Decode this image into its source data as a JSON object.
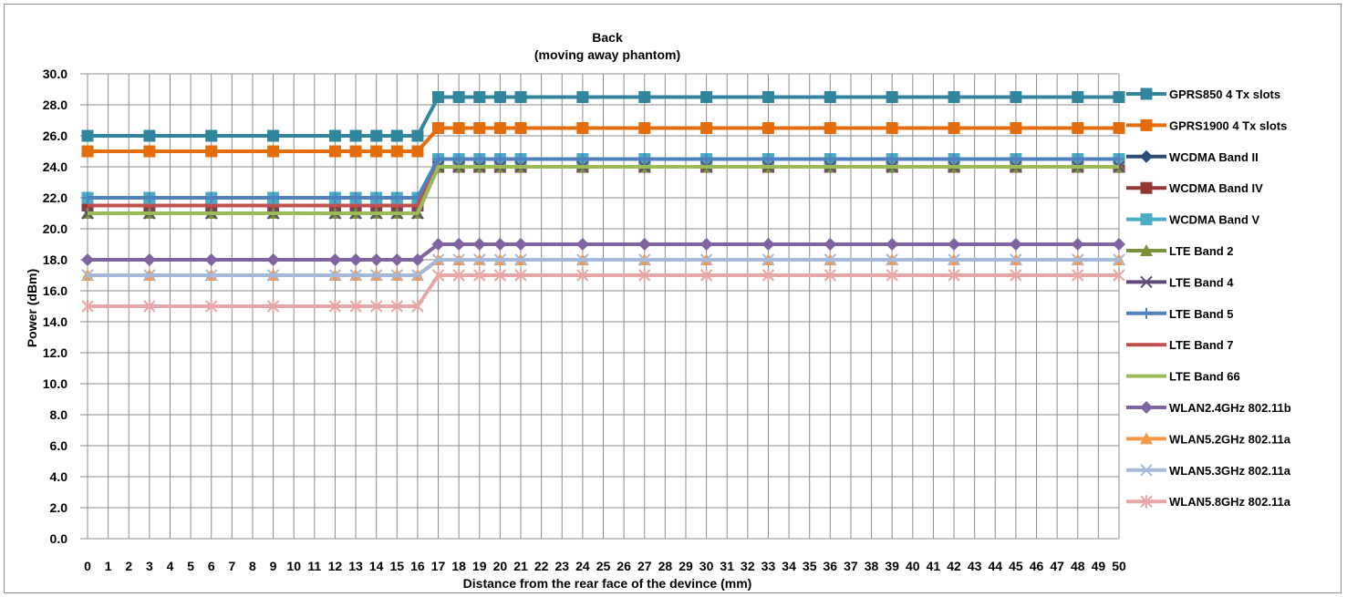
{
  "chart_data": {
    "type": "line",
    "title": "Back",
    "subtitle": "(moving away phantom)",
    "xlabel": "Distance from the rear face of the devince (mm)",
    "ylabel": "Power (dBm)",
    "ylim": [
      0,
      30
    ],
    "y_ticks": [
      "0.0",
      "2.0",
      "4.0",
      "6.0",
      "8.0",
      "10.0",
      "12.0",
      "14.0",
      "16.0",
      "18.0",
      "20.0",
      "22.0",
      "24.0",
      "26.0",
      "28.0",
      "30.0"
    ],
    "x_ticks": [
      "0",
      "1",
      "2",
      "3",
      "4",
      "5",
      "6",
      "7",
      "8",
      "9",
      "10",
      "11",
      "12",
      "13",
      "14",
      "15",
      "16",
      "17",
      "18",
      "19",
      "20",
      "21",
      "22",
      "23",
      "24",
      "25",
      "26",
      "27",
      "28",
      "29",
      "30",
      "31",
      "32",
      "33",
      "34",
      "35",
      "36",
      "37",
      "38",
      "39",
      "40",
      "41",
      "42",
      "43",
      "44",
      "45",
      "46",
      "47",
      "48",
      "49",
      "50"
    ],
    "x": [
      0,
      3,
      6,
      9,
      12,
      13,
      14,
      15,
      16,
      17,
      18,
      19,
      20,
      21,
      24,
      27,
      30,
      33,
      36,
      39,
      42,
      45,
      48,
      50
    ],
    "grid": true,
    "legend_position": "right",
    "series": [
      {
        "name": "GPRS850 4 Tx slots",
        "color": "#31859c",
        "marker": "square",
        "values": [
          26,
          26,
          26,
          26,
          26,
          26,
          26,
          26,
          26,
          28.5,
          28.5,
          28.5,
          28.5,
          28.5,
          28.5,
          28.5,
          28.5,
          28.5,
          28.5,
          28.5,
          28.5,
          28.5,
          28.5,
          28.5
        ]
      },
      {
        "name": "GPRS1900 4 Tx slots",
        "color": "#e46c0a",
        "marker": "square",
        "values": [
          25,
          25,
          25,
          25,
          25,
          25,
          25,
          25,
          25,
          26.5,
          26.5,
          26.5,
          26.5,
          26.5,
          26.5,
          26.5,
          26.5,
          26.5,
          26.5,
          26.5,
          26.5,
          26.5,
          26.5,
          26.5
        ]
      },
      {
        "name": "WCDMA Band II",
        "color": "#2c4d75",
        "marker": "diamond",
        "values": [
          22,
          22,
          22,
          22,
          22,
          22,
          22,
          22,
          22,
          24.5,
          24.5,
          24.5,
          24.5,
          24.5,
          24.5,
          24.5,
          24.5,
          24.5,
          24.5,
          24.5,
          24.5,
          24.5,
          24.5,
          24.5
        ]
      },
      {
        "name": "WCDMA Band IV",
        "color": "#953735",
        "marker": "square",
        "values": [
          21.5,
          21.5,
          21.5,
          21.5,
          21.5,
          21.5,
          21.5,
          21.5,
          21.5,
          24,
          24,
          24,
          24,
          24,
          24,
          24,
          24,
          24,
          24,
          24,
          24,
          24,
          24,
          24
        ]
      },
      {
        "name": "WCDMA Band V",
        "color": "#4bacc6",
        "marker": "square",
        "values": [
          22,
          22,
          22,
          22,
          22,
          22,
          22,
          22,
          22,
          24.5,
          24.5,
          24.5,
          24.5,
          24.5,
          24.5,
          24.5,
          24.5,
          24.5,
          24.5,
          24.5,
          24.5,
          24.5,
          24.5,
          24.5
        ]
      },
      {
        "name": "LTE Band 2",
        "color": "#77933c",
        "marker": "triangle",
        "values": [
          21,
          21,
          21,
          21,
          21,
          21,
          21,
          21,
          21,
          24,
          24,
          24,
          24,
          24,
          24,
          24,
          24,
          24,
          24,
          24,
          24,
          24,
          24,
          24
        ]
      },
      {
        "name": "LTE Band 4",
        "color": "#5f497a",
        "marker": "x",
        "values": [
          21,
          21,
          21,
          21,
          21,
          21,
          21,
          21,
          21,
          24,
          24,
          24,
          24,
          24,
          24,
          24,
          24,
          24,
          24,
          24,
          24,
          24,
          24,
          24
        ]
      },
      {
        "name": "LTE Band 5",
        "color": "#4f81bd",
        "marker": "plus",
        "values": [
          22,
          22,
          22,
          22,
          22,
          22,
          22,
          22,
          22,
          24.5,
          24.5,
          24.5,
          24.5,
          24.5,
          24.5,
          24.5,
          24.5,
          24.5,
          24.5,
          24.5,
          24.5,
          24.5,
          24.5,
          24.5
        ]
      },
      {
        "name": "LTE Band 7",
        "color": "#c0504d",
        "marker": "none",
        "values": [
          21.5,
          21.5,
          21.5,
          21.5,
          21.5,
          21.5,
          21.5,
          21.5,
          21.5,
          24,
          24,
          24,
          24,
          24,
          24,
          24,
          24,
          24,
          24,
          24,
          24,
          24,
          24,
          24
        ]
      },
      {
        "name": "LTE Band 66",
        "color": "#9bbb59",
        "marker": "none",
        "values": [
          21,
          21,
          21,
          21,
          21,
          21,
          21,
          21,
          21,
          24,
          24,
          24,
          24,
          24,
          24,
          24,
          24,
          24,
          24,
          24,
          24,
          24,
          24,
          24
        ]
      },
      {
        "name": "WLAN2.4GHz 802.11b",
        "color": "#8064a2",
        "marker": "diamond",
        "values": [
          18,
          18,
          18,
          18,
          18,
          18,
          18,
          18,
          18,
          19,
          19,
          19,
          19,
          19,
          19,
          19,
          19,
          19,
          19,
          19,
          19,
          19,
          19,
          19
        ]
      },
      {
        "name": "WLAN5.2GHz 802.11a",
        "color": "#f79646",
        "marker": "triangle",
        "values": [
          17,
          17,
          17,
          17,
          17,
          17,
          17,
          17,
          17,
          18,
          18,
          18,
          18,
          18,
          18,
          18,
          18,
          18,
          18,
          18,
          18,
          18,
          18,
          18
        ]
      },
      {
        "name": "WLAN5.3GHz 802.11a",
        "color": "#a6b9d8",
        "marker": "x",
        "values": [
          17,
          17,
          17,
          17,
          17,
          17,
          17,
          17,
          17,
          18,
          18,
          18,
          18,
          18,
          18,
          18,
          18,
          18,
          18,
          18,
          18,
          18,
          18,
          18
        ]
      },
      {
        "name": "WLAN5.8GHz 802.11a",
        "color": "#e6a7a6",
        "marker": "star",
        "values": [
          15,
          15,
          15,
          15,
          15,
          15,
          15,
          15,
          15,
          17,
          17,
          17,
          17,
          17,
          17,
          17,
          17,
          17,
          17,
          17,
          17,
          17,
          17,
          17
        ]
      }
    ]
  }
}
